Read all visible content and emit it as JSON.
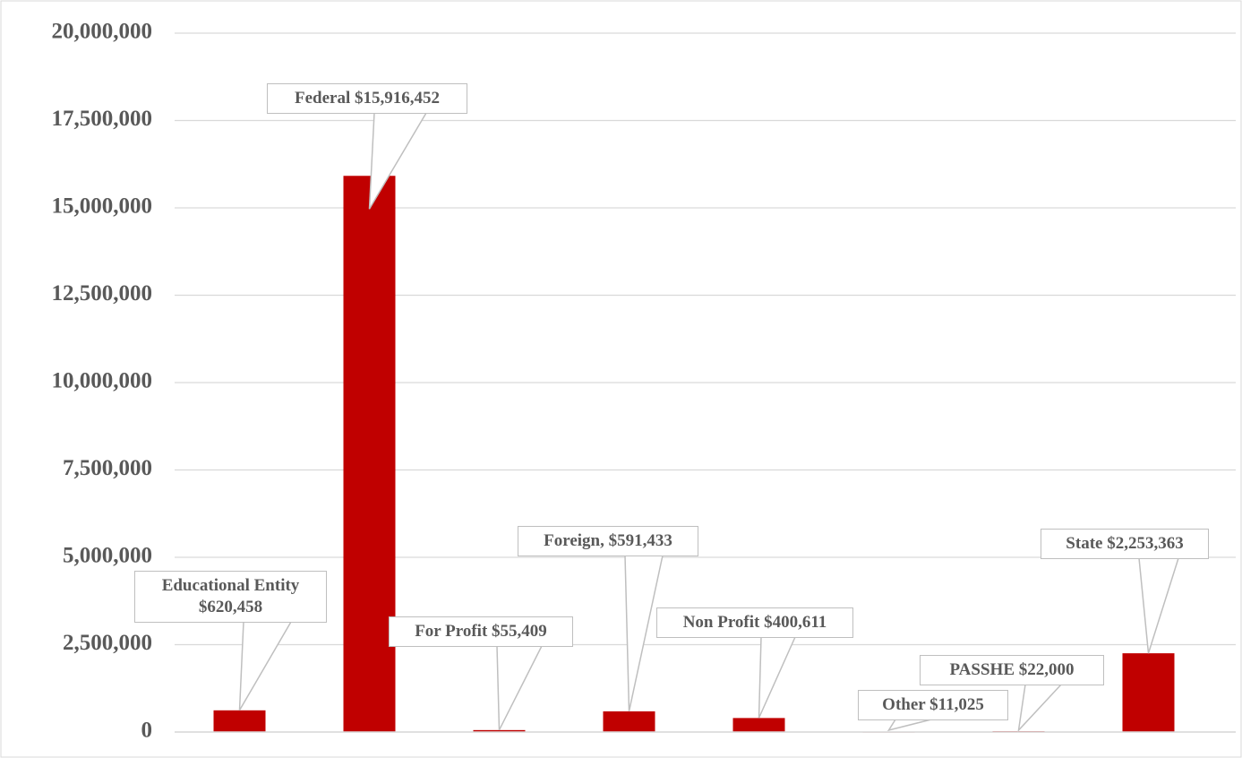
{
  "chart_data": {
    "type": "bar",
    "values": [
      620458,
      15916452,
      55409,
      591433,
      400611,
      11025,
      22000,
      2253363
    ],
    "value_labels": [
      "Educational Entity $620,458",
      "Federal $15,916,452",
      "For Profit $55,409",
      "Foreign, $591,433",
      "Non Profit $400,611",
      "Other $11,025",
      "PASSHE $22,000",
      "State $2,253,363"
    ],
    "color": "#c00000",
    "ylim": [
      0,
      20000000
    ],
    "yticks": [
      {
        "value": 0,
        "label": "0"
      },
      {
        "value": 2500000,
        "label": "2,500,000"
      },
      {
        "value": 5000000,
        "label": "5,000,000"
      },
      {
        "value": 7500000,
        "label": "7,500,000"
      },
      {
        "value": 10000000,
        "label": "10,000,000"
      },
      {
        "value": 12500000,
        "label": "12,500,000"
      },
      {
        "value": 15000000,
        "label": "15,000,000"
      },
      {
        "value": 17500000,
        "label": "17,500,000"
      },
      {
        "value": 20000000,
        "label": "20,000,000"
      }
    ],
    "grid": true
  }
}
